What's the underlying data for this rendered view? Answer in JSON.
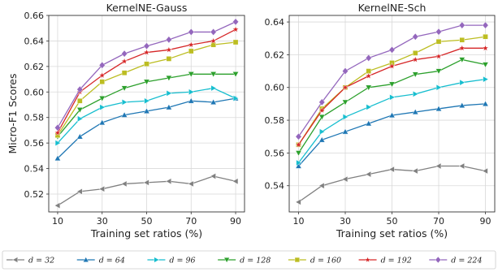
{
  "chart_data": [
    {
      "type": "line",
      "title": "KernelNE-Gauss",
      "xlabel": "Training set ratios (%)",
      "ylabel": "Micro-F1 Scores",
      "x": [
        10,
        20,
        30,
        40,
        50,
        60,
        70,
        80,
        90
      ],
      "xticks": [
        10,
        30,
        50,
        70,
        90
      ],
      "yticks": [
        0.52,
        0.54,
        0.56,
        0.58,
        0.6,
        0.62,
        0.64,
        0.66
      ],
      "xlim": [
        6,
        94
      ],
      "ylim": [
        0.506,
        0.66
      ],
      "grid": true,
      "series": [
        {
          "name": "d = 32",
          "color": "#808080",
          "marker": "triangle-left",
          "values": [
            0.511,
            0.522,
            0.524,
            0.528,
            0.529,
            0.53,
            0.528,
            0.534,
            0.53
          ]
        },
        {
          "name": "d = 64",
          "color": "#1f77b4",
          "marker": "triangle-up",
          "values": [
            0.548,
            0.565,
            0.576,
            0.582,
            0.585,
            0.588,
            0.593,
            0.592,
            0.595
          ]
        },
        {
          "name": "d = 96",
          "color": "#17becf",
          "marker": "triangle-right",
          "values": [
            0.56,
            0.579,
            0.588,
            0.592,
            0.593,
            0.599,
            0.6,
            0.603,
            0.595
          ]
        },
        {
          "name": "d = 128",
          "color": "#2ca02c",
          "marker": "triangle-down",
          "values": [
            0.565,
            0.586,
            0.595,
            0.603,
            0.608,
            0.611,
            0.614,
            0.614,
            0.614
          ]
        },
        {
          "name": "d = 160",
          "color": "#bcbd22",
          "marker": "square",
          "values": [
            0.566,
            0.593,
            0.608,
            0.615,
            0.622,
            0.626,
            0.632,
            0.637,
            0.639
          ]
        },
        {
          "name": "d = 192",
          "color": "#d62728",
          "marker": "star",
          "values": [
            0.568,
            0.6,
            0.613,
            0.624,
            0.631,
            0.633,
            0.637,
            0.64,
            0.649
          ]
        },
        {
          "name": "d = 224",
          "color": "#9467bd",
          "marker": "diamond",
          "values": [
            0.572,
            0.602,
            0.621,
            0.63,
            0.636,
            0.641,
            0.647,
            0.647,
            0.655
          ]
        }
      ]
    },
    {
      "type": "line",
      "title": "KernelNE-Sch",
      "xlabel": "Training set ratios (%)",
      "ylabel": "",
      "x": [
        10,
        20,
        30,
        40,
        50,
        60,
        70,
        80,
        90
      ],
      "xticks": [
        10,
        30,
        50,
        70,
        90
      ],
      "yticks": [
        0.54,
        0.56,
        0.58,
        0.6,
        0.62,
        0.64
      ],
      "xlim": [
        6,
        94
      ],
      "ylim": [
        0.524,
        0.644
      ],
      "grid": true,
      "series": [
        {
          "name": "d = 32",
          "color": "#808080",
          "marker": "triangle-left",
          "values": [
            0.53,
            0.54,
            0.544,
            0.547,
            0.55,
            0.549,
            0.552,
            0.552,
            0.549
          ]
        },
        {
          "name": "d = 64",
          "color": "#1f77b4",
          "marker": "triangle-up",
          "values": [
            0.552,
            0.568,
            0.573,
            0.578,
            0.583,
            0.585,
            0.587,
            0.589,
            0.59
          ]
        },
        {
          "name": "d = 96",
          "color": "#17becf",
          "marker": "triangle-right",
          "values": [
            0.554,
            0.573,
            0.582,
            0.588,
            0.594,
            0.596,
            0.6,
            0.603,
            0.605
          ]
        },
        {
          "name": "d = 128",
          "color": "#2ca02c",
          "marker": "triangle-down",
          "values": [
            0.56,
            0.582,
            0.591,
            0.6,
            0.602,
            0.608,
            0.61,
            0.617,
            0.614
          ]
        },
        {
          "name": "d = 160",
          "color": "#bcbd22",
          "marker": "square",
          "values": [
            0.565,
            0.587,
            0.6,
            0.61,
            0.615,
            0.621,
            0.628,
            0.629,
            0.631
          ]
        },
        {
          "name": "d = 192",
          "color": "#d62728",
          "marker": "star",
          "values": [
            0.565,
            0.586,
            0.6,
            0.607,
            0.613,
            0.617,
            0.619,
            0.624,
            0.624
          ]
        },
        {
          "name": "d = 224",
          "color": "#9467bd",
          "marker": "diamond",
          "values": [
            0.57,
            0.591,
            0.61,
            0.618,
            0.623,
            0.631,
            0.634,
            0.638,
            0.638
          ]
        }
      ]
    }
  ],
  "legend": {
    "placement": "bottom",
    "items": [
      {
        "label": "d = 32",
        "color": "#808080",
        "marker": "triangle-left"
      },
      {
        "label": "d = 64",
        "color": "#1f77b4",
        "marker": "triangle-up"
      },
      {
        "label": "d = 96",
        "color": "#17becf",
        "marker": "triangle-right"
      },
      {
        "label": "d = 128",
        "color": "#2ca02c",
        "marker": "triangle-down"
      },
      {
        "label": "d = 160",
        "color": "#bcbd22",
        "marker": "square"
      },
      {
        "label": "d = 192",
        "color": "#d62728",
        "marker": "star"
      },
      {
        "label": "d = 224",
        "color": "#9467bd",
        "marker": "diamond"
      }
    ]
  }
}
